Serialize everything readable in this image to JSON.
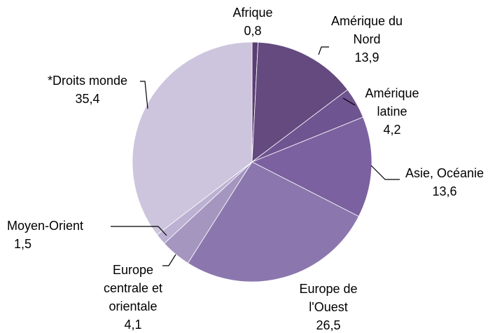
{
  "chart_data": {
    "type": "pie",
    "categories": [
      "Afrique",
      "Amérique du Nord",
      "Amérique latine",
      "Asie, Océanie",
      "Europe de l'Ouest",
      "Europe centrale et orientale",
      "Moyen-Orient",
      "*Droits monde"
    ],
    "values": [
      0.8,
      13.9,
      4.2,
      13.6,
      26.5,
      4.1,
      1.5,
      35.4
    ],
    "value_labels": [
      "0,8",
      "13,9",
      "4,2",
      "13,6",
      "26,5",
      "4,1",
      "1,5",
      "35,4"
    ],
    "colors": [
      "#5a3e72",
      "#644a7f",
      "#6e5490",
      "#7c61a0",
      "#8b77ae",
      "#a596c0",
      "#bcb1d2",
      "#cdc5dd"
    ]
  }
}
